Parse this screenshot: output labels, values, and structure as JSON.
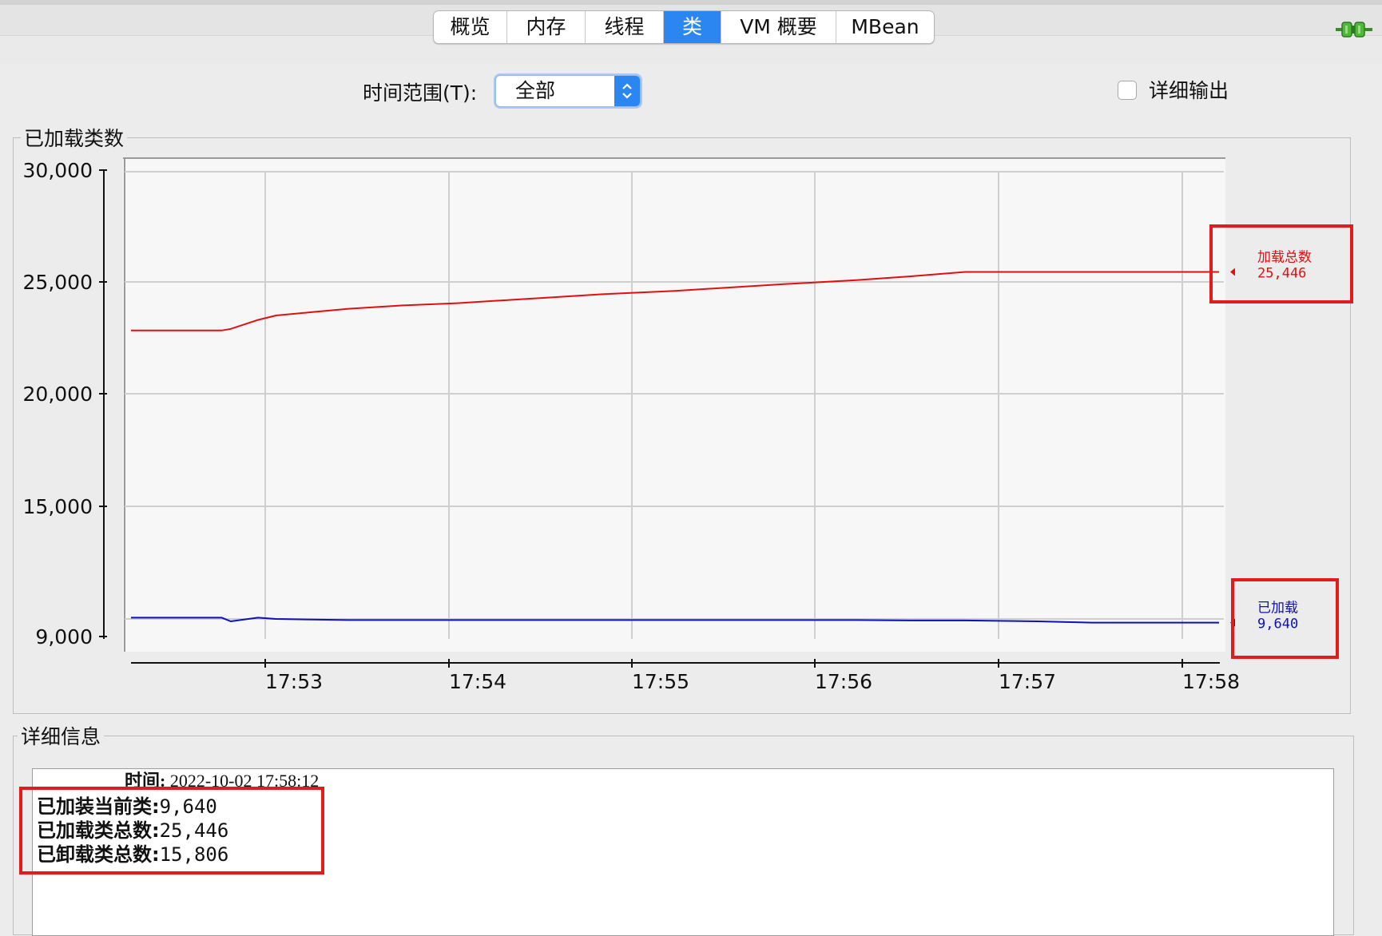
{
  "tabs": [
    {
      "label": "概览",
      "active": false
    },
    {
      "label": "内存",
      "active": false
    },
    {
      "label": "线程",
      "active": false
    },
    {
      "label": "类",
      "active": true
    },
    {
      "label": "VM 概要",
      "active": false
    },
    {
      "label": "MBean",
      "active": false
    }
  ],
  "controls": {
    "time_range_label": "时间范围(T):",
    "time_range_value": "全部",
    "verbose_label": "详细输出",
    "verbose_checked": false
  },
  "chart_panel": {
    "title": "已加载类数"
  },
  "chart_data": {
    "type": "line",
    "title": "已加载类数",
    "x_ticks": [
      "17:53",
      "17:54",
      "17:55",
      "17:56",
      "17:57",
      "17:58"
    ],
    "y_ticks": [
      "30,000",
      "25,000",
      "20,000",
      "15,000",
      "9,000"
    ],
    "ylim": [
      9000,
      30000
    ],
    "grid": true,
    "x_minutes": [
      0,
      0.5,
      0.55,
      0.7,
      0.8,
      1.0,
      1.2,
      1.5,
      1.8,
      2.0,
      2.3,
      2.6,
      3.0,
      3.3,
      3.6,
      4.0,
      4.3,
      4.6,
      5.0,
      5.3,
      5.6,
      6.0
    ],
    "series": [
      {
        "name": "加载总数",
        "color": "#e01010",
        "label_value": "25,446",
        "values": [
          22830,
          22830,
          22900,
          23300,
          23500,
          23650,
          23800,
          23950,
          24050,
          24150,
          24300,
          24450,
          24600,
          24750,
          24900,
          25080,
          25250,
          25446,
          25446,
          25446,
          25446,
          25446
        ]
      },
      {
        "name": "已加载",
        "color": "#1010b8",
        "label_value": "9,640",
        "values": [
          9870,
          9870,
          9700,
          9870,
          9810,
          9780,
          9760,
          9760,
          9760,
          9760,
          9760,
          9760,
          9760,
          9760,
          9760,
          9760,
          9740,
          9740,
          9700,
          9640,
          9640,
          9640
        ]
      }
    ]
  },
  "details": {
    "title": "详细信息",
    "time_label": "时间:",
    "time_value": "2022-10-02 17:58:12",
    "rows": [
      {
        "label": "已加装当前类:",
        "value": "9,640"
      },
      {
        "label": "已加载类总数:",
        "value": "25,446"
      },
      {
        "label": "已卸载类总数:",
        "value": "15,806"
      }
    ]
  }
}
